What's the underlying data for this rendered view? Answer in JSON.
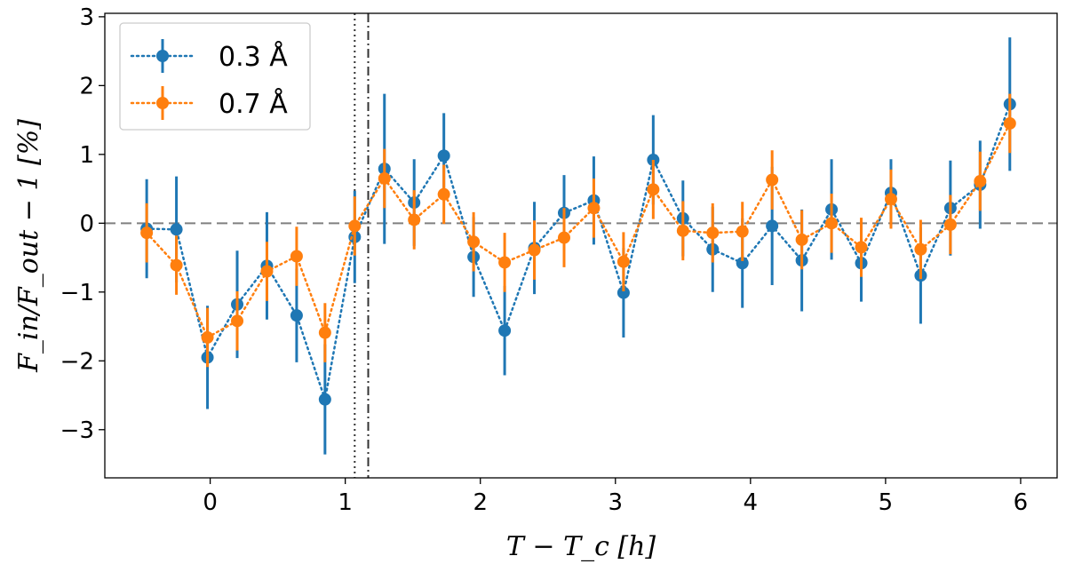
{
  "chart_data": {
    "type": "scatter",
    "title": "",
    "xlabel": "T − T_c [h]",
    "ylabel": "F_in/F_out − 1 [%]",
    "xlim": [
      -0.78,
      6.27
    ],
    "ylim": [
      -3.7,
      3.05
    ],
    "xticks": [
      0,
      1,
      2,
      3,
      4,
      5,
      6
    ],
    "xtick_labels": [
      "0",
      "1",
      "2",
      "3",
      "4",
      "5",
      "6"
    ],
    "yticks": [
      -3,
      -2,
      -1,
      0,
      1,
      2,
      3
    ],
    "ytick_labels": [
      "−3",
      "−2",
      "−1",
      "0",
      "1",
      "2",
      "3"
    ],
    "legend_position": "top-left",
    "reference_lines": [
      {
        "orientation": "horizontal",
        "value": 0,
        "style": "dashed",
        "color": "#808080"
      },
      {
        "orientation": "vertical",
        "value": 1.07,
        "style": "dotted",
        "color": "#333333"
      },
      {
        "orientation": "vertical",
        "value": 1.17,
        "style": "dashdot",
        "color": "#333333"
      }
    ],
    "series": [
      {
        "name": "0.3 Å",
        "color": "#1f77b4",
        "x": [
          -0.47,
          -0.25,
          -0.02,
          0.2,
          0.42,
          0.64,
          0.85,
          1.07,
          1.29,
          1.51,
          1.73,
          1.95,
          2.18,
          2.4,
          2.62,
          2.84,
          3.06,
          3.28,
          3.5,
          3.72,
          3.94,
          4.16,
          4.38,
          4.6,
          4.82,
          5.04,
          5.26,
          5.48,
          5.7,
          5.92
        ],
        "y": [
          -0.08,
          -0.09,
          -1.95,
          -1.18,
          -0.62,
          -1.34,
          -2.56,
          -0.2,
          0.79,
          0.3,
          0.98,
          -0.49,
          -1.56,
          -0.36,
          0.15,
          0.33,
          -1.01,
          0.92,
          0.07,
          -0.38,
          -0.58,
          -0.04,
          -0.54,
          0.2,
          -0.58,
          0.44,
          -0.76,
          0.22,
          0.56,
          1.73
        ],
        "err": [
          0.72,
          0.77,
          0.75,
          0.78,
          0.78,
          0.68,
          0.8,
          0.67,
          1.09,
          0.63,
          0.62,
          0.58,
          0.65,
          0.67,
          0.55,
          0.64,
          0.65,
          0.65,
          0.55,
          0.62,
          0.65,
          0.86,
          0.74,
          0.73,
          0.56,
          0.49,
          0.7,
          0.69,
          0.64,
          0.97
        ]
      },
      {
        "name": "0.7 Å",
        "color": "#ff7f0e",
        "x": [
          -0.47,
          -0.25,
          -0.02,
          0.2,
          0.42,
          0.64,
          0.85,
          1.07,
          1.29,
          1.51,
          1.73,
          1.95,
          2.18,
          2.4,
          2.62,
          2.84,
          3.06,
          3.28,
          3.5,
          3.72,
          3.94,
          4.16,
          4.38,
          4.6,
          4.82,
          5.04,
          5.26,
          5.48,
          5.7,
          5.92
        ],
        "y": [
          -0.14,
          -0.61,
          -1.66,
          -1.42,
          -0.7,
          -0.48,
          -1.59,
          -0.04,
          0.65,
          0.05,
          0.42,
          -0.27,
          -0.57,
          -0.39,
          -0.21,
          0.22,
          -0.56,
          0.49,
          -0.11,
          -0.14,
          -0.12,
          0.63,
          -0.24,
          0.0,
          -0.35,
          0.35,
          -0.38,
          -0.02,
          0.61,
          1.45
        ]
      }
    ]
  }
}
